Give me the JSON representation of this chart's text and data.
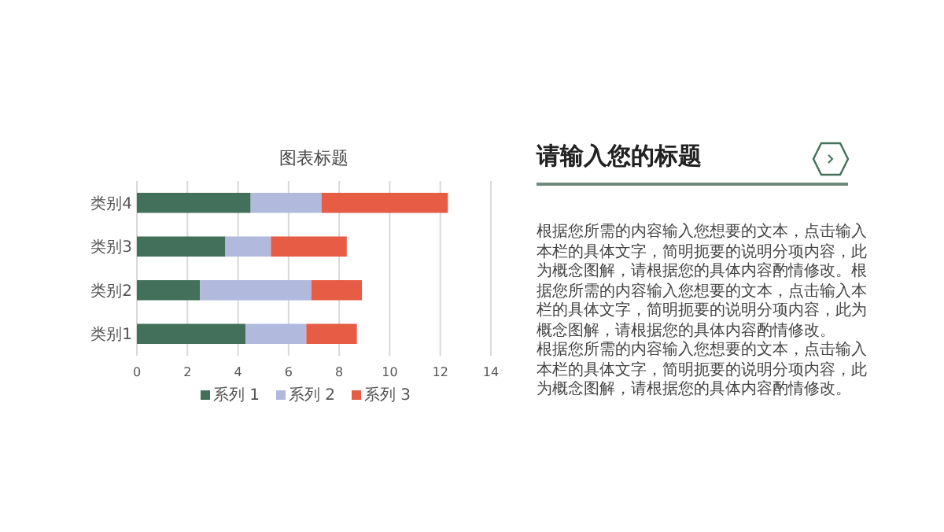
{
  "chart_data": [
    {
      "type": "bar",
      "orientation": "horizontal",
      "stacked": true,
      "title": "图表标题",
      "categories": [
        "类别4",
        "类别3",
        "类别2",
        "类别1"
      ],
      "series": [
        {
          "name": "系列 1",
          "color": "#43705a",
          "values": [
            4.5,
            3.5,
            2.5,
            4.3
          ]
        },
        {
          "name": "系列 2",
          "color": "#b1b9dd",
          "values": [
            2.8,
            1.8,
            4.4,
            2.4
          ]
        },
        {
          "name": "系列 3",
          "color": "#e65c44",
          "values": [
            5,
            3,
            2,
            2
          ]
        }
      ],
      "xlim": [
        0,
        14
      ],
      "xticks": [
        0,
        2,
        4,
        6,
        8,
        10,
        12,
        14
      ],
      "grid": "x",
      "legend": "bottom"
    },
    {
      "type": "other",
      "title": "请输入您的标题",
      "annotations": [
        "根据您所需的内容输入您想要的文本，点击输入本栏的具体文字，简明扼要的说明分项内容，此为概念图解，请根据您的具体内容酌情修改。根据您所需的内容输入您想要的文本，点击输入本栏的具体文字，简明扼要的说明分项内容，此为概念图解，请根据您的具体内容酌情修改。",
        "根据您所需的内容输入您想要的文本，点击输入本栏的具体文字，简明扼要的说明分项内容，此为概念图解，请根据您的具体内容酌情修改。"
      ]
    }
  ]
}
